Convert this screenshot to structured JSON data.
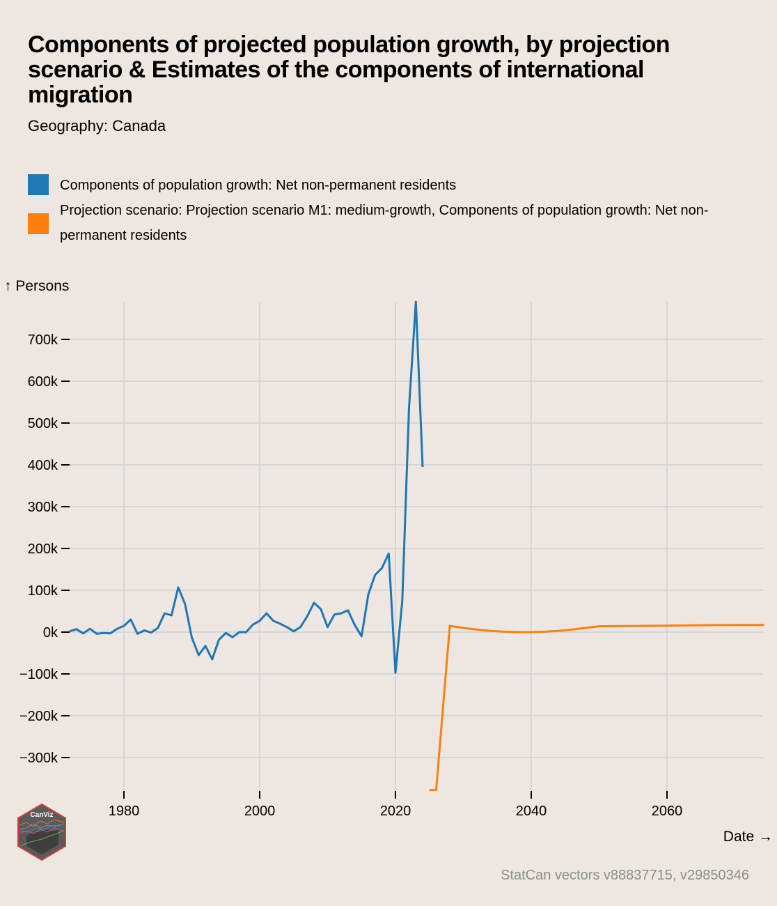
{
  "header": {
    "title": "Components of projected population growth, by projection scenario & Estimates of the components of international migration",
    "subtitle": "Geography: Canada"
  },
  "legend": [
    {
      "label": "Components of population growth: Net non-permanent residents",
      "color": "#1f77b4"
    },
    {
      "label": "Projection scenario: Projection scenario M1: medium-growth, Components of population growth: Net non-permanent residents",
      "color": "#ff7f0e"
    }
  ],
  "logo": {
    "text": "CanViz",
    "icon": "canviz-hexagon-logo"
  },
  "source": "StatCan vectors v88837715, v29850346",
  "chart_data": {
    "type": "line",
    "title": "Components of projected population growth, by projection scenario & Estimates of the components of international migration",
    "subtitle": "Geography: Canada",
    "xlabel": "Date →",
    "ylabel": "↑ Persons",
    "xlim": [
      1972,
      2074.3
    ],
    "ylim": [
      -380000,
      790000
    ],
    "grid": true,
    "legend_position": "top",
    "x_ticks": [
      1980,
      2000,
      2020,
      2040,
      2060
    ],
    "x_tick_labels": [
      "1980",
      "2000",
      "2020",
      "2040",
      "2060"
    ],
    "y_ticks": [
      -300000,
      -200000,
      -100000,
      0,
      100000,
      200000,
      300000,
      400000,
      500000,
      600000,
      700000
    ],
    "y_tick_labels": [
      "−300k",
      "−200k",
      "−100k",
      "0k",
      "100k",
      "200k",
      "300k",
      "400k",
      "500k",
      "600k",
      "700k"
    ],
    "series": [
      {
        "name": "Components of population growth: Net non-permanent residents",
        "color": "#1f77b4",
        "x": [
          1972,
          1973,
          1974,
          1975,
          1976,
          1977,
          1978,
          1979,
          1980,
          1981,
          1982,
          1983,
          1984,
          1985,
          1986,
          1987,
          1988,
          1989,
          1990,
          1991,
          1992,
          1993,
          1994,
          1995,
          1996,
          1997,
          1998,
          1999,
          2000,
          2001,
          2002,
          2003,
          2004,
          2005,
          2006,
          2007,
          2008,
          2009,
          2010,
          2011,
          2012,
          2013,
          2014,
          2015,
          2016,
          2017,
          2018,
          2019,
          2020,
          2021,
          2022,
          2023,
          2024
        ],
        "y": [
          2000,
          7000,
          -3000,
          8000,
          -4000,
          -2000,
          -3000,
          8000,
          15000,
          30000,
          -4000,
          4000,
          -1000,
          10000,
          45000,
          40000,
          107000,
          67000,
          -13000,
          -55000,
          -33000,
          -65000,
          -18000,
          -2000,
          -12000,
          0,
          0,
          18000,
          27000,
          45000,
          27000,
          20000,
          12000,
          2000,
          12000,
          38000,
          70000,
          55000,
          12000,
          42000,
          45000,
          52000,
          17000,
          -10000,
          90000,
          137000,
          153000,
          188000,
          -97000,
          75000,
          537000,
          790000,
          395000
        ]
      },
      {
        "name": "Projection scenario: Projection scenario M1: medium-growth, Components of population growth: Net non-permanent residents",
        "color": "#ff7f0e",
        "x": [
          2025,
          2026,
          2028,
          2030,
          2032,
          2034,
          2036,
          2038,
          2040,
          2042,
          2044,
          2046,
          2048,
          2050,
          2055,
          2060,
          2065,
          2070,
          2074.3
        ],
        "y": [
          -378000,
          -377000,
          15000,
          10000,
          6000,
          3000,
          1000,
          0,
          0,
          1000,
          3000,
          6000,
          10000,
          14000,
          14500,
          15500,
          16500,
          17000,
          17000
        ]
      }
    ]
  }
}
